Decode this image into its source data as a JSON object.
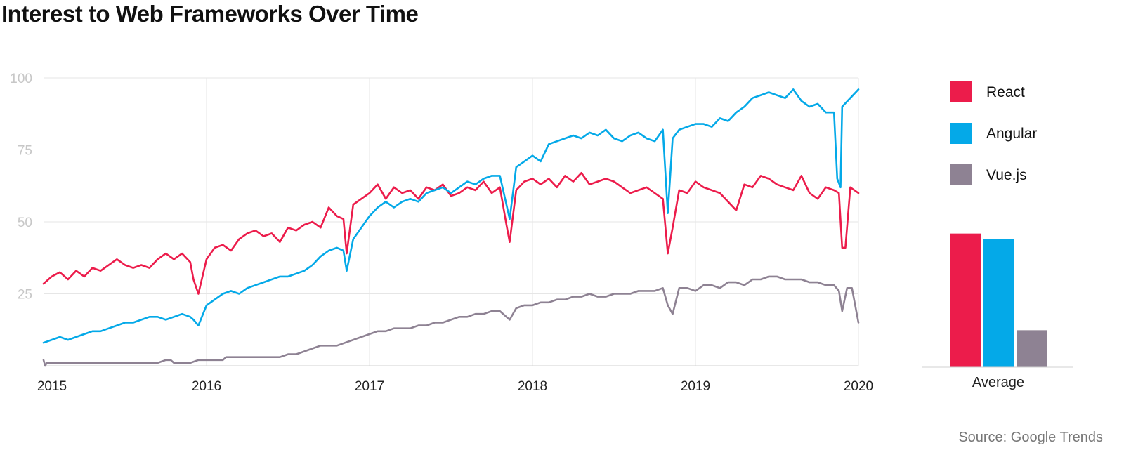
{
  "title": "Interest to Web Frameworks Over Time",
  "source": "Source: Google Trends",
  "colors": {
    "React": "#ec1c4b",
    "Angular": "#04a9e8",
    "Vue.js": "#8e8293",
    "grid": "#e6e6e6",
    "ytick": "#c7c7c7"
  },
  "chart_data": [
    {
      "type": "line",
      "title": "Interest to Web Frameworks Over Time",
      "xlabel": "",
      "ylabel": "",
      "xlim": [
        2015,
        2020
      ],
      "ylim": [
        0,
        100
      ],
      "yticks": [
        25,
        50,
        75,
        100
      ],
      "xticks": [
        2015,
        2016,
        2017,
        2018,
        2019,
        2020
      ],
      "xtick_labels": [
        "2015",
        "2016",
        "2017",
        "2018",
        "2019",
        "2020"
      ],
      "grid": true,
      "legend": "right",
      "series": [
        {
          "name": "React",
          "x": [
            2015.0,
            2015.05,
            2015.1,
            2015.15,
            2015.2,
            2015.25,
            2015.3,
            2015.35,
            2015.4,
            2015.45,
            2015.5,
            2015.55,
            2015.6,
            2015.65,
            2015.7,
            2015.75,
            2015.8,
            2015.85,
            2015.9,
            2015.92,
            2015.95,
            2016.0,
            2016.05,
            2016.1,
            2016.15,
            2016.2,
            2016.25,
            2016.3,
            2016.35,
            2016.4,
            2016.45,
            2016.5,
            2016.55,
            2016.6,
            2016.65,
            2016.7,
            2016.75,
            2016.8,
            2016.84,
            2016.86,
            2016.9,
            2016.95,
            2017.0,
            2017.05,
            2017.1,
            2017.15,
            2017.2,
            2017.25,
            2017.3,
            2017.35,
            2017.4,
            2017.45,
            2017.5,
            2017.55,
            2017.6,
            2017.65,
            2017.7,
            2017.75,
            2017.8,
            2017.84,
            2017.86,
            2017.9,
            2017.95,
            2018.0,
            2018.05,
            2018.1,
            2018.15,
            2018.2,
            2018.25,
            2018.3,
            2018.35,
            2018.4,
            2018.45,
            2018.5,
            2018.55,
            2018.6,
            2018.65,
            2018.7,
            2018.75,
            2018.8,
            2018.83,
            2018.86,
            2018.9,
            2018.95,
            2019.0,
            2019.05,
            2019.1,
            2019.15,
            2019.2,
            2019.25,
            2019.3,
            2019.35,
            2019.4,
            2019.45,
            2019.5,
            2019.55,
            2019.6,
            2019.65,
            2019.7,
            2019.75,
            2019.8,
            2019.85,
            2019.88,
            2019.9,
            2019.92,
            2019.95,
            2020.0
          ],
          "values": [
            28.5,
            31,
            32.5,
            30,
            33,
            31,
            34,
            33,
            35,
            37,
            35,
            34,
            35,
            34,
            37,
            39,
            37,
            39,
            36,
            30,
            25,
            37,
            41,
            42,
            40,
            44,
            46,
            47,
            45,
            46,
            43,
            48,
            47,
            49,
            50,
            48,
            55,
            52,
            51,
            39,
            56,
            58,
            60,
            63,
            58,
            62,
            60,
            61,
            58,
            62,
            61,
            63,
            59,
            60,
            62,
            61,
            64,
            60,
            62,
            49,
            43,
            61,
            64,
            65,
            63,
            65,
            62,
            66,
            64,
            67,
            63,
            64,
            65,
            64,
            62,
            60,
            61,
            62,
            60,
            58,
            39,
            48,
            61,
            60,
            64,
            62,
            61,
            60,
            57,
            54,
            63,
            62,
            66,
            65,
            63,
            62,
            61,
            66,
            60,
            58,
            62,
            61,
            60,
            41,
            41,
            62,
            60
          ]
        },
        {
          "name": "Angular",
          "x": [
            2015.0,
            2015.05,
            2015.1,
            2015.15,
            2015.2,
            2015.25,
            2015.3,
            2015.35,
            2015.4,
            2015.45,
            2015.5,
            2015.55,
            2015.6,
            2015.65,
            2015.7,
            2015.75,
            2015.8,
            2015.85,
            2015.9,
            2015.92,
            2015.95,
            2016.0,
            2016.05,
            2016.1,
            2016.15,
            2016.2,
            2016.25,
            2016.3,
            2016.35,
            2016.4,
            2016.45,
            2016.5,
            2016.55,
            2016.6,
            2016.65,
            2016.7,
            2016.75,
            2016.8,
            2016.84,
            2016.86,
            2016.9,
            2016.95,
            2017.0,
            2017.05,
            2017.1,
            2017.15,
            2017.2,
            2017.25,
            2017.3,
            2017.35,
            2017.4,
            2017.45,
            2017.5,
            2017.55,
            2017.6,
            2017.65,
            2017.7,
            2017.75,
            2017.8,
            2017.84,
            2017.86,
            2017.9,
            2017.95,
            2018.0,
            2018.05,
            2018.1,
            2018.15,
            2018.2,
            2018.25,
            2018.3,
            2018.35,
            2018.4,
            2018.45,
            2018.5,
            2018.55,
            2018.6,
            2018.65,
            2018.7,
            2018.75,
            2018.8,
            2018.83,
            2018.86,
            2018.9,
            2018.95,
            2019.0,
            2019.05,
            2019.1,
            2019.15,
            2019.2,
            2019.25,
            2019.3,
            2019.35,
            2019.4,
            2019.45,
            2019.5,
            2019.55,
            2019.6,
            2019.65,
            2019.7,
            2019.75,
            2019.8,
            2019.85,
            2019.87,
            2019.89,
            2019.9,
            2019.95,
            2020.0
          ],
          "values": [
            8,
            9,
            10,
            9,
            10,
            11,
            12,
            12,
            13,
            14,
            15,
            15,
            16,
            17,
            17,
            16,
            17,
            18,
            17,
            16,
            14,
            21,
            23,
            25,
            26,
            25,
            27,
            28,
            29,
            30,
            31,
            31,
            32,
            33,
            35,
            38,
            40,
            41,
            40,
            33,
            44,
            48,
            52,
            55,
            57,
            55,
            57,
            58,
            57,
            60,
            61,
            62,
            60,
            62,
            64,
            63,
            65,
            66,
            66,
            56,
            51,
            69,
            71,
            73,
            71,
            77,
            78,
            79,
            80,
            79,
            81,
            80,
            82,
            79,
            78,
            80,
            81,
            79,
            78,
            82,
            53,
            79,
            82,
            83,
            84,
            84,
            83,
            86,
            85,
            88,
            90,
            93,
            94,
            95,
            94,
            93,
            96,
            92,
            90,
            91,
            88,
            88,
            65,
            62,
            90,
            93,
            96
          ]
        },
        {
          "name": "Vue.js",
          "x": [
            2015.0,
            2015.01,
            2015.02,
            2015.05,
            2015.1,
            2015.2,
            2015.3,
            2015.4,
            2015.5,
            2015.6,
            2015.7,
            2015.75,
            2015.78,
            2015.8,
            2015.85,
            2015.9,
            2015.95,
            2016.0,
            2016.05,
            2016.1,
            2016.12,
            2016.15,
            2016.2,
            2016.25,
            2016.3,
            2016.35,
            2016.4,
            2016.45,
            2016.5,
            2016.55,
            2016.6,
            2016.65,
            2016.7,
            2016.75,
            2016.8,
            2016.85,
            2016.9,
            2016.95,
            2017.0,
            2017.05,
            2017.1,
            2017.15,
            2017.2,
            2017.25,
            2017.3,
            2017.35,
            2017.4,
            2017.45,
            2017.5,
            2017.55,
            2017.6,
            2017.65,
            2017.7,
            2017.75,
            2017.8,
            2017.84,
            2017.86,
            2017.9,
            2017.95,
            2018.0,
            2018.05,
            2018.1,
            2018.15,
            2018.2,
            2018.25,
            2018.3,
            2018.35,
            2018.4,
            2018.45,
            2018.5,
            2018.55,
            2018.6,
            2018.65,
            2018.7,
            2018.75,
            2018.8,
            2018.83,
            2018.86,
            2018.9,
            2018.95,
            2019.0,
            2019.05,
            2019.1,
            2019.15,
            2019.2,
            2019.25,
            2019.3,
            2019.35,
            2019.4,
            2019.45,
            2019.5,
            2019.55,
            2019.6,
            2019.65,
            2019.7,
            2019.75,
            2019.8,
            2019.85,
            2019.88,
            2019.9,
            2019.93,
            2019.96,
            2020.0
          ],
          "values": [
            2,
            0,
            1,
            1,
            1,
            1,
            1,
            1,
            1,
            1,
            1,
            2,
            2,
            1,
            1,
            1,
            2,
            2,
            2,
            2,
            3,
            3,
            3,
            3,
            3,
            3,
            3,
            3,
            4,
            4,
            5,
            6,
            7,
            7,
            7,
            8,
            9,
            10,
            11,
            12,
            12,
            13,
            13,
            13,
            14,
            14,
            15,
            15,
            16,
            17,
            17,
            18,
            18,
            19,
            19,
            17,
            16,
            20,
            21,
            21,
            22,
            22,
            23,
            23,
            24,
            24,
            25,
            24,
            24,
            25,
            25,
            25,
            26,
            26,
            26,
            27,
            21,
            18,
            27,
            27,
            26,
            28,
            28,
            27,
            29,
            29,
            28,
            30,
            30,
            31,
            31,
            30,
            30,
            30,
            29,
            29,
            28,
            28,
            26,
            19,
            27,
            27,
            15
          ]
        }
      ]
    },
    {
      "type": "bar",
      "title": "",
      "xlabel": "Average",
      "ylabel": "",
      "categories": [
        "React",
        "Angular",
        "Vue.js"
      ],
      "values": [
        47,
        45,
        13
      ],
      "ylim": [
        0,
        100
      ],
      "grid": false
    }
  ]
}
